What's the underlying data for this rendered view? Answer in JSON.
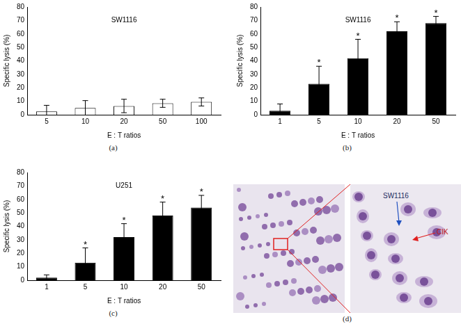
{
  "chart_data": [
    {
      "type": "bar",
      "title": "SW1116",
      "panel_label": "(a)",
      "categories": [
        "5",
        "10",
        "20",
        "50",
        "100"
      ],
      "values": [
        2.5,
        5,
        6.5,
        8.5,
        9.5
      ],
      "errors": [
        4.5,
        5.5,
        5,
        3,
        3
      ],
      "color": "#ffffff",
      "x_label": "E : T ratios",
      "y_label": "Specific lysis (%)",
      "ylim": [
        0,
        80
      ],
      "yticks": [
        0,
        10,
        20,
        30,
        40,
        50,
        60,
        70,
        80
      ],
      "grid": false
    },
    {
      "type": "bar",
      "title": "SW1116",
      "panel_label": "(b)",
      "categories": [
        "1",
        "5",
        "10",
        "20",
        "50"
      ],
      "values": [
        3,
        23,
        42,
        62,
        68
      ],
      "errors": [
        5,
        13,
        14,
        7,
        5
      ],
      "annotations": [
        {
          "category": "5",
          "text": "*"
        },
        {
          "category": "10",
          "text": "*"
        },
        {
          "category": "20",
          "text": "*"
        },
        {
          "category": "50",
          "text": "*"
        }
      ],
      "color": "#000000",
      "x_label": "E : T ratios",
      "y_label": "Specific lysis (%)",
      "ylim": [
        0,
        80
      ],
      "yticks": [
        0,
        10,
        20,
        30,
        40,
        50,
        60,
        70,
        80
      ],
      "grid": false
    },
    {
      "type": "bar",
      "title": "U251",
      "panel_label": "(c)",
      "categories": [
        "1",
        "5",
        "10",
        "20",
        "50"
      ],
      "values": [
        2,
        13,
        32,
        48,
        54
      ],
      "errors": [
        2,
        11,
        10,
        10,
        9
      ],
      "annotations": [
        {
          "category": "5",
          "text": "*"
        },
        {
          "category": "10",
          "text": "*"
        },
        {
          "category": "20",
          "text": "*"
        },
        {
          "category": "50",
          "text": "*"
        }
      ],
      "color": "#000000",
      "x_label": "E : T ratios",
      "y_label": "Specific lysis (%)",
      "ylim": [
        0,
        80
      ],
      "yticks": [
        0,
        10,
        20,
        30,
        40,
        50,
        60,
        70,
        80
      ],
      "grid": false
    }
  ],
  "image_panel": {
    "panel_label": "(d)",
    "labels": [
      "SW1116",
      "CIK"
    ]
  }
}
